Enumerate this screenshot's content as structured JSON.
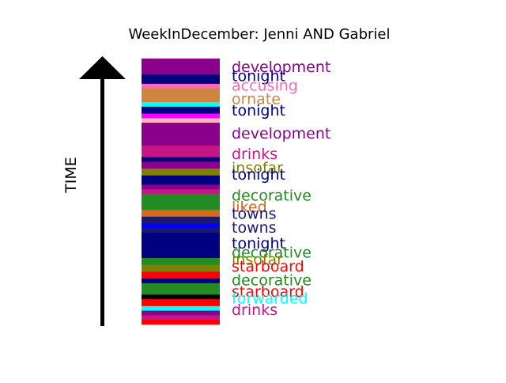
{
  "chart_data": {
    "type": "bar",
    "title": "WeekInDecember: Jenni AND Gabriel",
    "ylabel": "TIME",
    "xlabel": "",
    "legend": "none",
    "grid": false,
    "stack_order": "top-to-bottom",
    "bands": [
      {
        "value": 7,
        "color": "#8B008B"
      },
      {
        "value": 4,
        "color": "#000080"
      },
      {
        "value": 2,
        "color": "#FF69B4"
      },
      {
        "value": 2,
        "color": "#CD853F"
      },
      {
        "value": 4,
        "color": "#CD853F"
      },
      {
        "value": 2,
        "color": "#00FFFF"
      },
      {
        "value": 3,
        "color": "#000080"
      },
      {
        "value": 2,
        "color": "#FF00FF"
      },
      {
        "value": 2,
        "color": "#FFB6C1"
      },
      {
        "value": 10,
        "color": "#8B008B"
      },
      {
        "value": 5,
        "color": "#C71585"
      },
      {
        "value": 2,
        "color": "#000080"
      },
      {
        "value": 3,
        "color": "#8B008B"
      },
      {
        "value": 3,
        "color": "#808000"
      },
      {
        "value": 4,
        "color": "#000080"
      },
      {
        "value": 2,
        "color": "#8B008B"
      },
      {
        "value": 2,
        "color": "#C71585"
      },
      {
        "value": 7,
        "color": "#228B22"
      },
      {
        "value": 3,
        "color": "#D2691E"
      },
      {
        "value": 3,
        "color": "#191970"
      },
      {
        "value": 2,
        "color": "#0000FF"
      },
      {
        "value": 2,
        "color": "#191970"
      },
      {
        "value": 3,
        "color": "#000080"
      },
      {
        "value": 8,
        "color": "#000080"
      },
      {
        "value": 3,
        "color": "#228B22"
      },
      {
        "value": 3,
        "color": "#808000"
      },
      {
        "value": 3,
        "color": "#FF0000"
      },
      {
        "value": 2,
        "color": "#000080"
      },
      {
        "value": 5,
        "color": "#228B22"
      },
      {
        "value": 2,
        "color": "#000000"
      },
      {
        "value": 3,
        "color": "#FF0000"
      },
      {
        "value": 2,
        "color": "#00FFFF"
      },
      {
        "value": 2,
        "color": "#8B008B"
      },
      {
        "value": 2,
        "color": "#C71585"
      },
      {
        "value": 2,
        "color": "#FF0000"
      }
    ],
    "labels": [
      {
        "text": "development",
        "pos": 4,
        "color": "#8B008B"
      },
      {
        "text": "tonight",
        "pos": 8,
        "color": "#000080"
      },
      {
        "text": "accusing",
        "pos": 12,
        "color": "#FF69B4"
      },
      {
        "text": "ornate",
        "pos": 18,
        "color": "#CD853F"
      },
      {
        "text": "tonight",
        "pos": 23,
        "color": "#000080"
      },
      {
        "text": "development",
        "pos": 33,
        "color": "#8B008B"
      },
      {
        "text": "drinks",
        "pos": 42,
        "color": "#C71585"
      },
      {
        "text": "insofar",
        "pos": 48,
        "color": "#808000"
      },
      {
        "text": "tonight",
        "pos": 51,
        "color": "#000080"
      },
      {
        "text": "decorative",
        "pos": 60,
        "color": "#228B22"
      },
      {
        "text": "liked",
        "pos": 65,
        "color": "#D2691E"
      },
      {
        "text": "towns",
        "pos": 68,
        "color": "#191970"
      },
      {
        "text": "towns",
        "pos": 74,
        "color": "#191970"
      },
      {
        "text": "tonight",
        "pos": 81,
        "color": "#000080"
      },
      {
        "text": "decorative",
        "pos": 85,
        "color": "#228B22"
      },
      {
        "text": "insofar",
        "pos": 88,
        "color": "#808000"
      },
      {
        "text": "starboard",
        "pos": 91,
        "color": "#FF0000"
      },
      {
        "text": "decorative",
        "pos": 97,
        "color": "#228B22"
      },
      {
        "text": "starboard",
        "pos": 102,
        "color": "#FF0000"
      },
      {
        "text": "forwarded",
        "pos": 105,
        "color": "#00FFFF"
      },
      {
        "text": "drinks",
        "pos": 110,
        "color": "#C71585"
      }
    ]
  }
}
